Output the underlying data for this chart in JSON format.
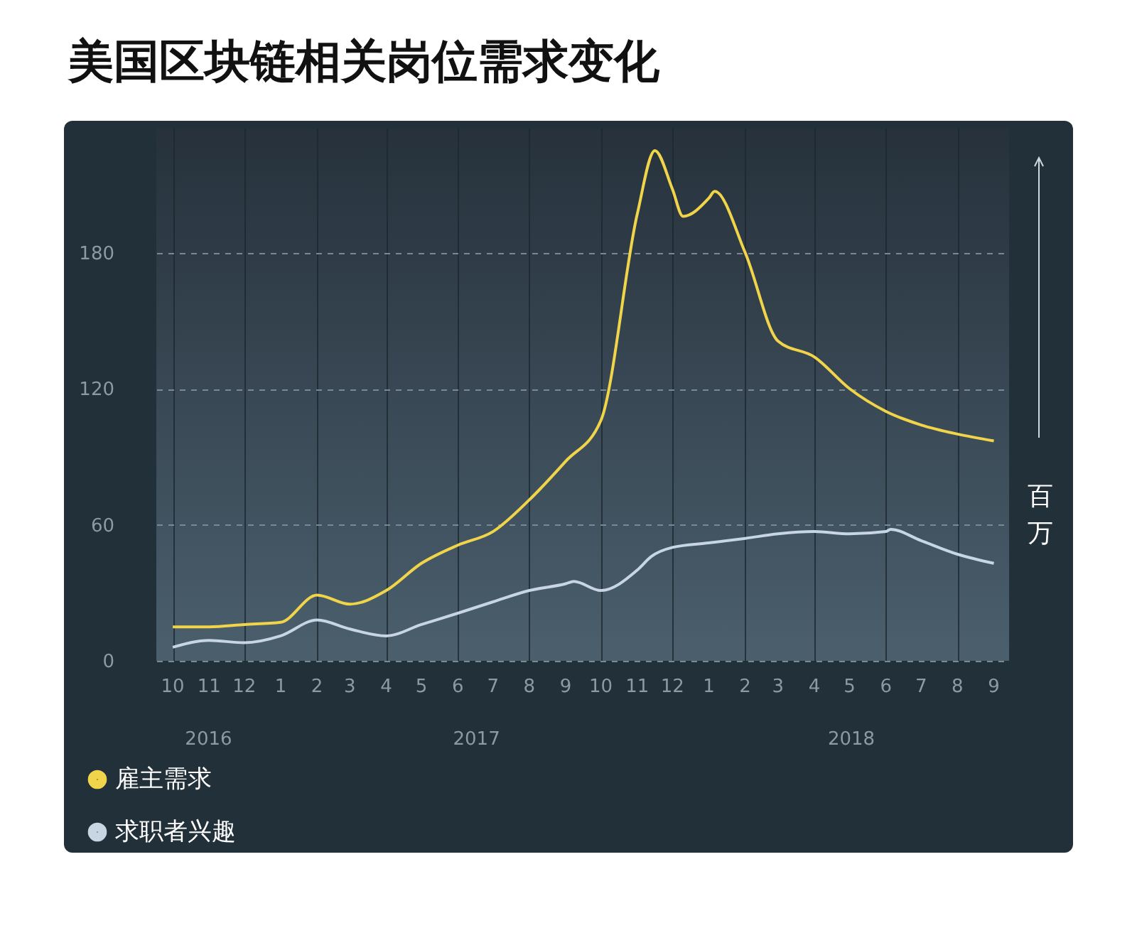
{
  "chart_data": {
    "type": "line",
    "title": "美国区块链相关岗位需求变化",
    "ylabel": "百万",
    "xlim": [
      "2016-09-17",
      "2018-09-14"
    ],
    "xticks": [
      {
        "value": "2016-10-01",
        "label": "10"
      },
      {
        "value": "2016-11-01",
        "label": "11"
      },
      {
        "value": "2016-12-01",
        "label": "12"
      },
      {
        "value": "2017-01-01",
        "label": "1"
      },
      {
        "value": "2017-02-01",
        "label": "2"
      },
      {
        "value": "2017-03-01",
        "label": "3"
      },
      {
        "value": "2017-04-01",
        "label": "4"
      },
      {
        "value": "2017-05-01",
        "label": "5"
      },
      {
        "value": "2017-06-01",
        "label": "6"
      },
      {
        "value": "2017-07-01",
        "label": "7"
      },
      {
        "value": "2017-08-01",
        "label": "8"
      },
      {
        "value": "2017-09-01",
        "label": "9"
      },
      {
        "value": "2017-10-01",
        "label": "10"
      },
      {
        "value": "2017-11-01",
        "label": "11"
      },
      {
        "value": "2017-12-01",
        "label": "12"
      },
      {
        "value": "2018-01-01",
        "label": "1"
      },
      {
        "value": "2018-02-01",
        "label": "2"
      },
      {
        "value": "2018-03-01",
        "label": "3"
      },
      {
        "value": "2018-04-01",
        "label": "4"
      },
      {
        "value": "2018-05-01",
        "label": "5"
      },
      {
        "value": "2018-06-01",
        "label": "6"
      },
      {
        "value": "2018-07-01",
        "label": "7"
      },
      {
        "value": "2018-08-01",
        "label": "8"
      },
      {
        "value": "2018-09-01",
        "label": "9"
      }
    ],
    "ylim": [
      0,
      235
    ],
    "yticks": [
      0,
      60,
      120,
      180
    ],
    "grid": true,
    "legend": "bottom left",
    "marker": "none",
    "line_style": "solid",
    "annotations": [
      "2016",
      "2017",
      "2018"
    ],
    "series": [
      {
        "name": "雇主需求",
        "color": "#f0d44a",
        "x": [
          "2016-10-01",
          "2016-11-01",
          "2016-12-01",
          "2017-01-01",
          "2017-02-01",
          "2017-03-01",
          "2017-04-01",
          "2017-05-01",
          "2017-06-01",
          "2017-07-01",
          "2017-08-01",
          "2017-09-01",
          "2017-10-01",
          "2017-11-01",
          "2017-11-16",
          "2017-12-01",
          "2017-12-10",
          "2018-01-01",
          "2018-01-06",
          "2018-02-01",
          "2018-03-01",
          "2018-04-01",
          "2018-05-01",
          "2018-06-01",
          "2018-07-01",
          "2018-08-01",
          "2018-09-01"
        ],
        "values": [
          15,
          15,
          16,
          17,
          29,
          25,
          31,
          43,
          51,
          57,
          71,
          88,
          106,
          197,
          225,
          208,
          196,
          204,
          207,
          180,
          141,
          134,
          120,
          110,
          104,
          100,
          97
        ]
      },
      {
        "name": "求职者兴趣",
        "color": "#c8d6e4",
        "x": [
          "2016-10-01",
          "2016-11-01",
          "2016-12-01",
          "2017-01-01",
          "2017-02-01",
          "2017-03-01",
          "2017-04-01",
          "2017-05-01",
          "2017-06-01",
          "2017-07-01",
          "2017-08-01",
          "2017-09-01",
          "2017-09-08",
          "2017-10-01",
          "2017-11-01",
          "2017-11-13",
          "2017-12-01",
          "2018-01-01",
          "2018-02-01",
          "2018-03-01",
          "2018-04-01",
          "2018-05-01",
          "2018-06-01",
          "2018-06-05",
          "2018-07-01",
          "2018-08-01",
          "2018-09-01"
        ],
        "values": [
          6,
          9,
          8,
          11,
          18,
          14,
          11,
          16,
          21,
          26,
          31,
          34,
          35,
          31,
          40,
          46,
          50,
          52,
          54,
          56,
          57,
          56,
          57,
          58,
          53,
          47,
          43
        ]
      }
    ]
  }
}
